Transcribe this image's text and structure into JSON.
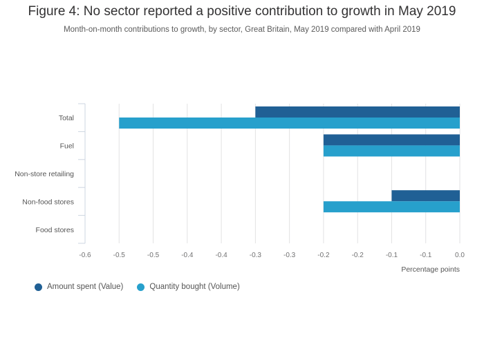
{
  "chart_data": {
    "type": "bar",
    "orientation": "horizontal",
    "title": "Figure 4: No sector reported a positive contribution to growth in May 2019",
    "subtitle": "Month-on-month contributions to growth, by sector, Great Britain, May 2019 compared with April 2019",
    "xlabel": "Percentage points",
    "ylabel": "",
    "xlim": [
      -0.55,
      0.0
    ],
    "x_tick_values": [
      -0.55,
      -0.5,
      -0.45,
      -0.4,
      -0.35,
      -0.3,
      -0.25,
      -0.2,
      -0.15,
      -0.1,
      -0.05,
      0.0
    ],
    "x_tick_labels": [
      "-0.6",
      "-0.5",
      "-0.5",
      "-0.4",
      "-0.4",
      "-0.3",
      "-0.3",
      "-0.2",
      "-0.2",
      "-0.1",
      "-0.1",
      "0.0"
    ],
    "grid": true,
    "categories": [
      "Total",
      "Fuel",
      "Non-store retailing",
      "Non-food stores",
      "Food stores"
    ],
    "series": [
      {
        "name": "Amount spent (Value)",
        "color": "#206095",
        "values": [
          -0.3,
          -0.2,
          0.0,
          -0.1,
          0.0
        ]
      },
      {
        "name": "Quantity bought (Volume)",
        "color": "#27a0cc",
        "values": [
          -0.5,
          -0.2,
          0.0,
          -0.2,
          0.0
        ]
      }
    ],
    "legend_position": "bottom-left"
  }
}
